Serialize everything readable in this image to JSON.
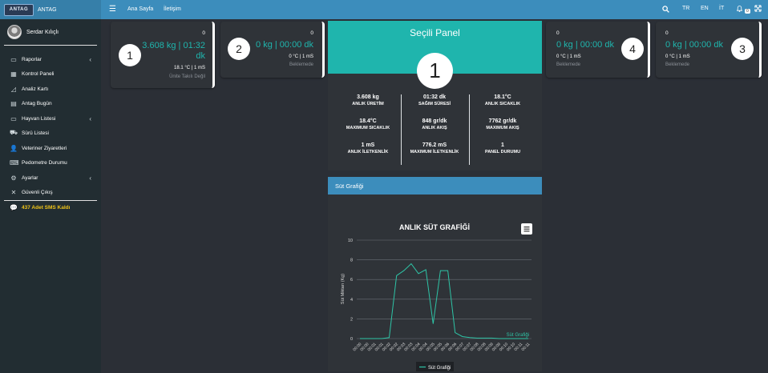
{
  "header": {
    "brand_logo_text": "ANTAG",
    "brand_name": "ANTAG",
    "nav": [
      "Ana Sayfa",
      "İletişim"
    ],
    "languages": [
      "TR",
      "EN",
      "İT"
    ],
    "notification_count": "0"
  },
  "sidebar": {
    "user_name": "Serdar Kılıçlı",
    "items": [
      {
        "label": "Raporlar",
        "icon": "report-icon",
        "has_submenu": true
      },
      {
        "label": "Kontrol Paneli",
        "icon": "grid-icon",
        "has_submenu": false
      },
      {
        "label": "Analiz Kartı",
        "icon": "area-chart-icon",
        "has_submenu": false
      },
      {
        "label": "Antag Bugün",
        "icon": "calendar-icon",
        "has_submenu": false
      },
      {
        "label": "Hayvan Listesi",
        "icon": "list-icon",
        "has_submenu": true
      },
      {
        "label": "Sürü Listesi",
        "icon": "truck-icon",
        "has_submenu": false
      },
      {
        "label": "Veteriner Ziyaretleri",
        "icon": "user-icon",
        "has_submenu": false
      },
      {
        "label": "Pedometre Durumu",
        "icon": "keyboard-icon",
        "has_submenu": false
      },
      {
        "label": "Ayarlar",
        "icon": "cogs-icon",
        "has_submenu": true
      },
      {
        "label": "Güvenli Çıkış",
        "icon": "close-icon",
        "has_submenu": false
      }
    ],
    "sms_label": "437 Adet SMS Kaldı"
  },
  "panels": [
    {
      "number": "1",
      "count": "0",
      "value": "3.608 kg | 01:32 dk",
      "temp": "18.1 °C | 1 mS",
      "status": "Ünite Takılı Değil"
    },
    {
      "number": "2",
      "count": "0",
      "value": "0 kg | 00:00 dk",
      "temp": "0 °C | 1 mS",
      "status": "Beklemede"
    },
    {
      "number": "4",
      "count": "0",
      "value": "0 kg | 00:00 dk",
      "temp": "0 °C | 1 mS",
      "status": "Beklemede"
    },
    {
      "number": "3",
      "count": "0",
      "value": "0 kg | 00:00 dk",
      "temp": "0 °C | 1 mS",
      "status": "Beklemede"
    }
  ],
  "selected_panel": {
    "title": "Seçili Panel",
    "number": "1",
    "stats": [
      {
        "value": "3.608 kg",
        "label": "ANLIK ÜRETİM"
      },
      {
        "value": "01:32 dk",
        "label": "SAĞIM SÜRESİ"
      },
      {
        "value": "18.1°C",
        "label": "ANLIK SICAKLIK"
      },
      {
        "value": "18.4°C",
        "label": "MAXIMUM SICAKLIK"
      },
      {
        "value": "848 gr/dk",
        "label": "ANLIK AKIŞ"
      },
      {
        "value": "7762 gr/dk",
        "label": "MAXIMUM AKIŞ"
      },
      {
        "value": "1 mS",
        "label": "ANLIK İLETKENLİK"
      },
      {
        "value": "776.2 mS",
        "label": "MAXIMUM İLETKENLİK"
      },
      {
        "value": "1",
        "label": "PANEL DURUMU"
      }
    ]
  },
  "chart_section": {
    "heading": "Süt Grafiği"
  },
  "chart_data": {
    "type": "line",
    "title": "ANLIK SÜT GRAFİĞİ",
    "ylabel": "Süt Miktarı (Kg)",
    "xlabel": "",
    "ylim": [
      0,
      10
    ],
    "yticks": [
      0,
      2,
      4,
      6,
      8,
      10
    ],
    "grid": true,
    "legend_position": "bottom",
    "line_color": "#2ec4a6",
    "x": [
      "00:00",
      "00:00",
      "00:01",
      "00:01",
      "00:02",
      "00:02",
      "00:03",
      "00:03",
      "00:04",
      "00:04",
      "00:05",
      "00:05",
      "00:06",
      "00:06",
      "00:07",
      "00:07",
      "00:08",
      "00:08",
      "00:09",
      "00:09",
      "00:10",
      "00:10",
      "00:11",
      "00:11"
    ],
    "series": [
      {
        "name": "Süt Grafiği",
        "values": [
          0,
          0,
          0,
          0,
          0.1,
          6.4,
          6.9,
          7.6,
          6.6,
          7.0,
          1.5,
          6.9,
          6.9,
          0.6,
          0.2,
          0.1,
          0.05,
          0.05,
          0.05,
          0,
          0,
          0,
          0,
          0
        ]
      }
    ]
  }
}
